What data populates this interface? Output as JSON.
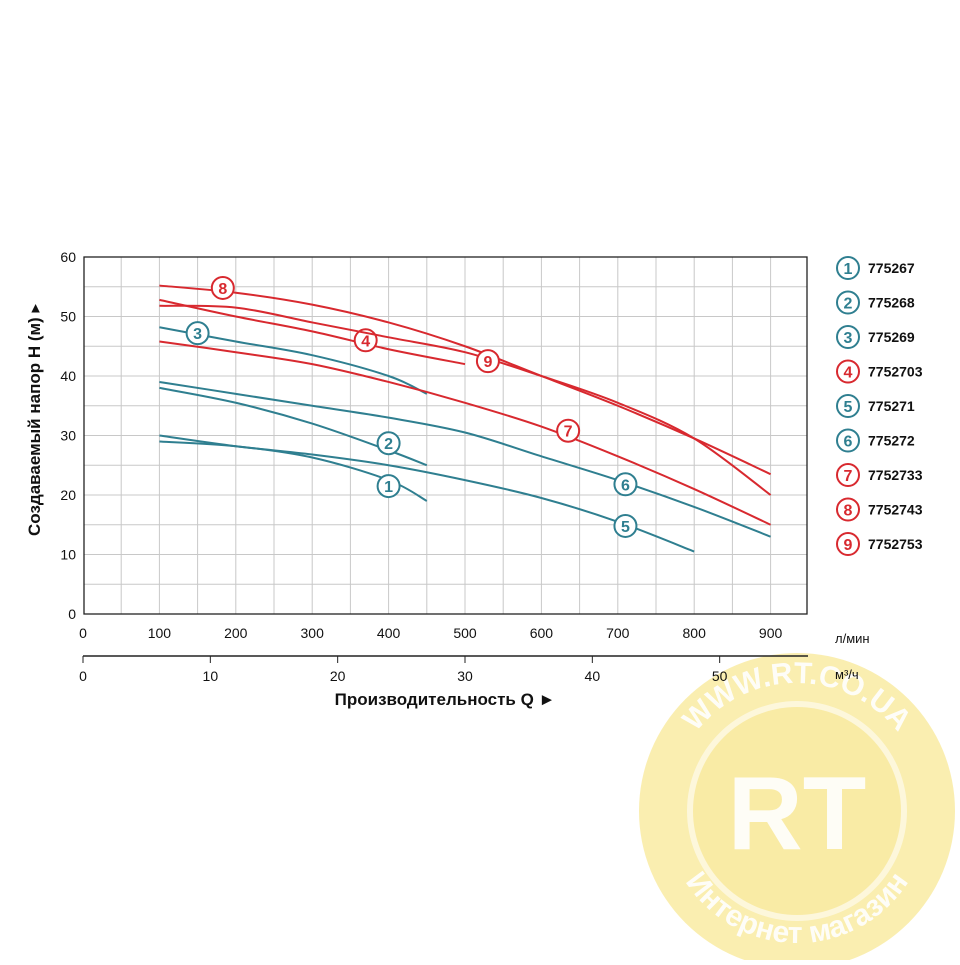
{
  "chart_data": {
    "type": "line",
    "ylabel": "Создаваемый напор H (м) ▸",
    "xlabel": "Производительность Q ►",
    "x_unit_primary": "л/мин",
    "x_unit_secondary": "м³/ч",
    "xlim": [
      0,
      950
    ],
    "ylim": [
      0,
      60
    ],
    "x_ticks": [
      0,
      100,
      200,
      300,
      400,
      500,
      600,
      700,
      800,
      900
    ],
    "y_ticks": [
      0,
      10,
      20,
      30,
      40,
      50,
      60
    ],
    "x2_ticks": [
      0,
      10,
      20,
      30,
      40,
      50
    ],
    "grid": true,
    "legend_position": "right",
    "colors": {
      "teal": "#2f7f90",
      "red": "#d8292f"
    },
    "series": [
      {
        "name": "775267",
        "number": "1",
        "color": "#2f7f90",
        "x": [
          100,
          200,
          300,
          400,
          450
        ],
        "y": [
          29,
          28.2,
          26.3,
          22.5,
          19
        ],
        "label_at": [
          400,
          21.5
        ]
      },
      {
        "name": "775268",
        "number": "2",
        "color": "#2f7f90",
        "x": [
          100,
          200,
          300,
          400,
          450
        ],
        "y": [
          38,
          35.5,
          32,
          27.5,
          25
        ],
        "label_at": [
          400,
          28.7
        ]
      },
      {
        "name": "775269",
        "number": "3",
        "color": "#2f7f90",
        "x": [
          100,
          200,
          300,
          400,
          450
        ],
        "y": [
          48.2,
          45.8,
          43.5,
          40,
          37
        ],
        "label_at": [
          150,
          47.2
        ]
      },
      {
        "name": "7752703",
        "number": "4",
        "color": "#d8292f",
        "x": [
          100,
          200,
          300,
          400,
          500
        ],
        "y": [
          52.8,
          50,
          47.5,
          44.5,
          42
        ],
        "label_at": [
          370,
          46
        ]
      },
      {
        "name": "775271",
        "number": "5",
        "color": "#2f7f90",
        "x": [
          100,
          200,
          300,
          400,
          500,
          600,
          700,
          800
        ],
        "y": [
          30,
          28.2,
          26.8,
          25,
          22.5,
          19.5,
          15.5,
          10.5
        ],
        "label_at": [
          710,
          14.8
        ]
      },
      {
        "name": "775272",
        "number": "6",
        "color": "#2f7f90",
        "x": [
          100,
          200,
          300,
          400,
          500,
          600,
          700,
          800,
          900
        ],
        "y": [
          39,
          37,
          35,
          33,
          30.5,
          26.5,
          22.5,
          18,
          13
        ],
        "label_at": [
          710,
          21.8
        ]
      },
      {
        "name": "7752733",
        "number": "7",
        "color": "#d8292f",
        "x": [
          100,
          200,
          300,
          400,
          500,
          600,
          700,
          800,
          900
        ],
        "y": [
          45.8,
          44,
          42,
          39,
          35.5,
          31.5,
          26.5,
          21,
          15
        ],
        "label_at": [
          635,
          30.8
        ]
      },
      {
        "name": "7752743",
        "number": "8",
        "color": "#d8292f",
        "x": [
          100,
          200,
          300,
          400,
          500,
          600,
          700,
          800,
          900
        ],
        "y": [
          55.2,
          54,
          52,
          49,
          45,
          40,
          35,
          29.5,
          23.5
        ],
        "label_at": [
          183,
          54.8
        ]
      },
      {
        "name": "7752753",
        "number": "9",
        "color": "#d8292f",
        "x": [
          100,
          200,
          300,
          400,
          500,
          600,
          700,
          800,
          900
        ],
        "y": [
          51.8,
          51.5,
          49,
          46.5,
          44,
          40,
          35.5,
          29.5,
          20
        ],
        "label_at": [
          530,
          42.5
        ]
      }
    ]
  },
  "watermark": {
    "top_text": "WWW.RT.CO.UA",
    "center_text": "RT",
    "bottom_text": "Интернет магазин",
    "color": "#f5e070"
  }
}
